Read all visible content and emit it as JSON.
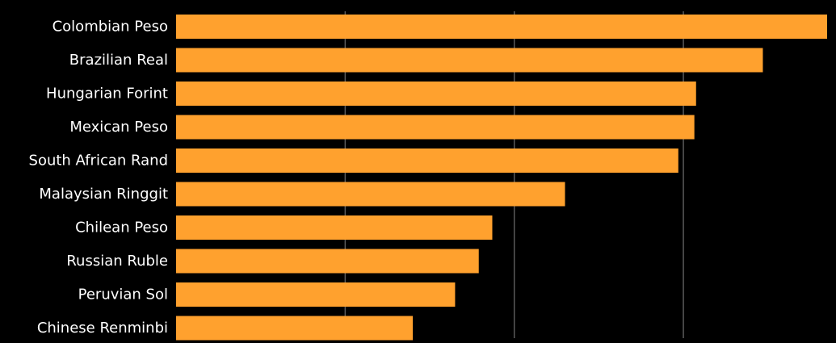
{
  "chart_data": {
    "type": "bar",
    "orientation": "horizontal",
    "categories": [
      "Colombian Peso",
      "Brazilian Real",
      "Hungarian Forint",
      "Mexican Peso",
      "South African Rand",
      "Malaysian Ringgit",
      "Chilean Peso",
      "Russian Ruble",
      "Peruvian Sol",
      "Chinese Renminbi"
    ],
    "values": [
      7.7,
      6.94,
      6.15,
      6.13,
      5.94,
      4.6,
      3.74,
      3.58,
      3.3,
      2.8
    ],
    "title": "",
    "xlabel": "",
    "ylabel": "",
    "xlim": [
      0,
      7.7
    ],
    "gridlines": [
      2,
      4,
      6
    ],
    "grid": true,
    "legend": "none",
    "colors": {
      "bar": "#ffa12e",
      "background": "#000000",
      "grid": "#5a5a5a",
      "label": "#ffffff"
    }
  }
}
